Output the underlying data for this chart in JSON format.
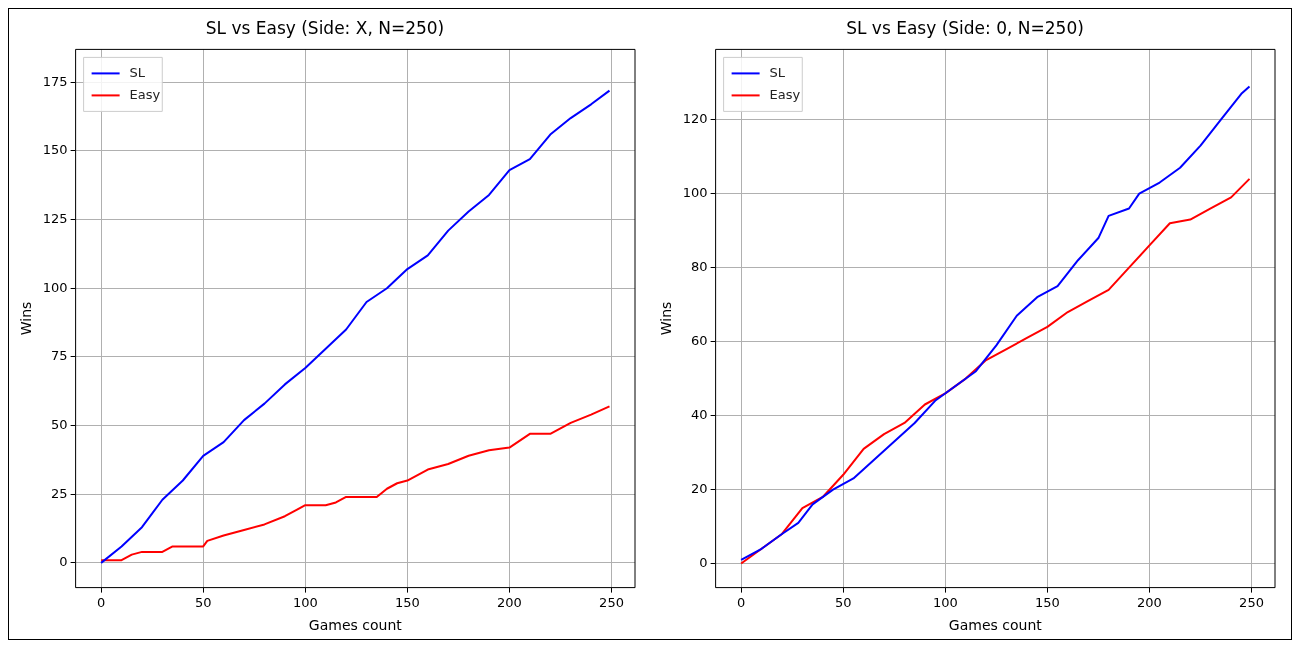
{
  "chart_data": [
    {
      "type": "line",
      "title": "SL vs Easy (Side: X, N=250)",
      "xlabel": "Games count",
      "ylabel": "Wins",
      "xlim": [
        -12.5,
        261.5
      ],
      "ylim": [
        -9,
        187
      ],
      "xticks": [
        0,
        50,
        100,
        150,
        200,
        250
      ],
      "yticks": [
        0,
        25,
        50,
        75,
        100,
        125,
        150,
        175
      ],
      "grid": true,
      "legend": "top left",
      "marker": "none",
      "line_style": "solid",
      "series": [
        {
          "name": "SL",
          "color": "#0000ff",
          "x": [
            0,
            10,
            20,
            30,
            40,
            50,
            60,
            70,
            80,
            90,
            100,
            110,
            120,
            130,
            140,
            150,
            160,
            170,
            180,
            190,
            200,
            210,
            220,
            230,
            240,
            249
          ],
          "values": [
            0,
            6,
            13,
            23,
            30,
            39,
            44,
            52,
            58,
            65,
            71,
            78,
            85,
            95,
            100,
            107,
            112,
            121,
            128,
            134,
            143,
            147,
            156,
            162,
            167,
            172
          ]
        },
        {
          "name": "Easy",
          "color": "#ff0000",
          "x": [
            0,
            10,
            15,
            20,
            30,
            35,
            50,
            52,
            60,
            70,
            80,
            90,
            100,
            110,
            115,
            120,
            135,
            140,
            145,
            150,
            160,
            170,
            180,
            190,
            200,
            210,
            220,
            225,
            230,
            240,
            249
          ],
          "values": [
            1,
            1,
            3,
            4,
            4,
            6,
            6,
            8,
            10,
            12,
            14,
            17,
            21,
            21,
            22,
            24,
            24,
            27,
            29,
            30,
            34,
            36,
            39,
            41,
            42,
            47,
            47,
            49,
            51,
            54,
            57
          ]
        }
      ]
    },
    {
      "type": "line",
      "title": "SL vs Easy (Side: 0, N=250)",
      "xlabel": "Games count",
      "ylabel": "Wins",
      "xlim": [
        -12.5,
        261.5
      ],
      "ylim": [
        -6.5,
        139
      ],
      "xticks": [
        0,
        50,
        100,
        150,
        200,
        250
      ],
      "yticks": [
        0,
        20,
        40,
        60,
        80,
        100,
        120
      ],
      "grid": true,
      "legend": "top left",
      "marker": "none",
      "line_style": "solid",
      "series": [
        {
          "name": "SL",
          "color": "#0000ff",
          "x": [
            0,
            10,
            20,
            28,
            35,
            45,
            55,
            65,
            75,
            85,
            95,
            105,
            115,
            125,
            135,
            145,
            155,
            165,
            175,
            180,
            190,
            195,
            205,
            215,
            225,
            235,
            245,
            249
          ],
          "values": [
            1,
            4,
            8,
            11,
            16,
            20,
            23,
            28,
            33,
            38,
            44,
            48,
            52,
            59,
            67,
            72,
            75,
            82,
            88,
            94,
            96,
            100,
            103,
            107,
            113,
            120,
            127,
            129
          ]
        },
        {
          "name": "Easy",
          "color": "#ff0000",
          "x": [
            0,
            10,
            20,
            30,
            40,
            50,
            60,
            70,
            80,
            90,
            100,
            110,
            120,
            130,
            140,
            150,
            160,
            170,
            180,
            190,
            200,
            210,
            220,
            230,
            240,
            249
          ],
          "values": [
            0,
            4,
            8,
            15,
            18,
            24,
            31,
            35,
            38,
            43,
            46,
            50,
            55,
            58,
            61,
            64,
            68,
            71,
            74,
            80,
            86,
            92,
            93,
            96,
            99,
            104
          ]
        }
      ]
    }
  ]
}
